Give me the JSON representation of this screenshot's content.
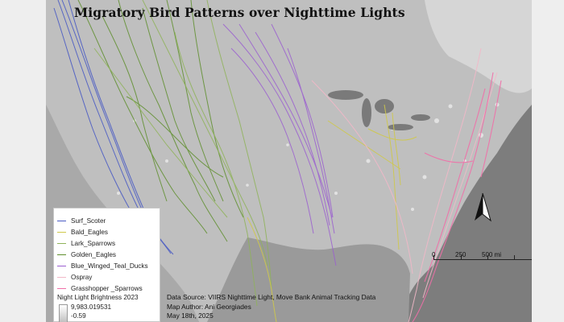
{
  "map": {
    "title": "Migratory Bird Patterns over Nighttime Lights"
  },
  "legend": {
    "items": [
      {
        "label": "Surf_Scoter",
        "color": "#4b5cc4",
        "icon": "line-swatch"
      },
      {
        "label": "Bald_Eagles",
        "color": "#cfc84a",
        "icon": "line-swatch"
      },
      {
        "label": "Lark_Sparrows",
        "color": "#8fb35a",
        "icon": "line-swatch"
      },
      {
        "label": "Golden_Eagles",
        "color": "#5f8f2e",
        "icon": "line-swatch"
      },
      {
        "label": "Blue_Winged_Teal_Ducks",
        "color": "#9b5fd0",
        "icon": "line-swatch"
      },
      {
        "label": "Ospray",
        "color": "#f2b8c8",
        "icon": "line-swatch"
      },
      {
        "label": "Grasshopper _Sparrows",
        "color": "#f06fa8",
        "icon": "line-swatch"
      }
    ],
    "brightness_title": "Night Light Brightness 2023",
    "brightness_max": "9,983.019531",
    "brightness_min": "-0.59"
  },
  "credits": {
    "source": "Data Source: VIIRS Nighttime Light, Move Bank Animal Tracking Data",
    "author": "Map Author: Ani Georgiades",
    "date": "May 18th, 2025"
  },
  "scalebar": {
    "labels": [
      "0",
      "250",
      "500 mi"
    ]
  },
  "north_arrow": {
    "icon": "north-arrow-icon"
  }
}
